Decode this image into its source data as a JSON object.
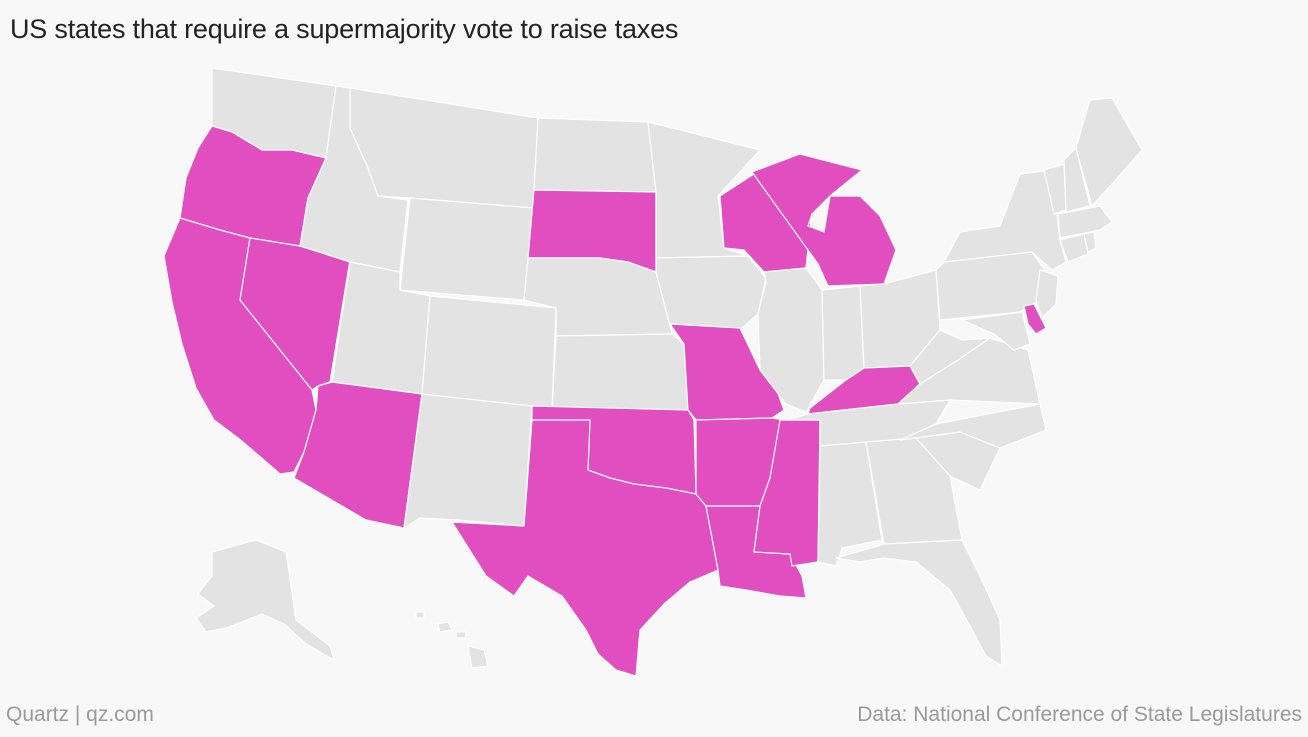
{
  "title": "US states that require a supermajority vote to raise taxes",
  "footer": {
    "brand": "Quartz | qz.com",
    "source": "Data: National Conference of State Legislatures"
  },
  "colors": {
    "highlight": "#e04ec0",
    "default": "#e3e3e3",
    "background": "#f8f8f8",
    "border": "#ffffff"
  },
  "map_data": {
    "highlighted_states": [
      "OR",
      "CA",
      "NV",
      "AZ",
      "SD",
      "WI",
      "MI",
      "MO",
      "OK",
      "TX",
      "AR",
      "LA",
      "MS",
      "KY",
      "DE"
    ],
    "other_states": [
      "WA",
      "ID",
      "MT",
      "WY",
      "UT",
      "CO",
      "NM",
      "ND",
      "NE",
      "KS",
      "MN",
      "IA",
      "IL",
      "IN",
      "OH",
      "TN",
      "AL",
      "GA",
      "FL",
      "SC",
      "NC",
      "VA",
      "WV",
      "PA",
      "NY",
      "VT",
      "NH",
      "ME",
      "MA",
      "CT",
      "RI",
      "NJ",
      "MD",
      "AK",
      "HI"
    ]
  }
}
